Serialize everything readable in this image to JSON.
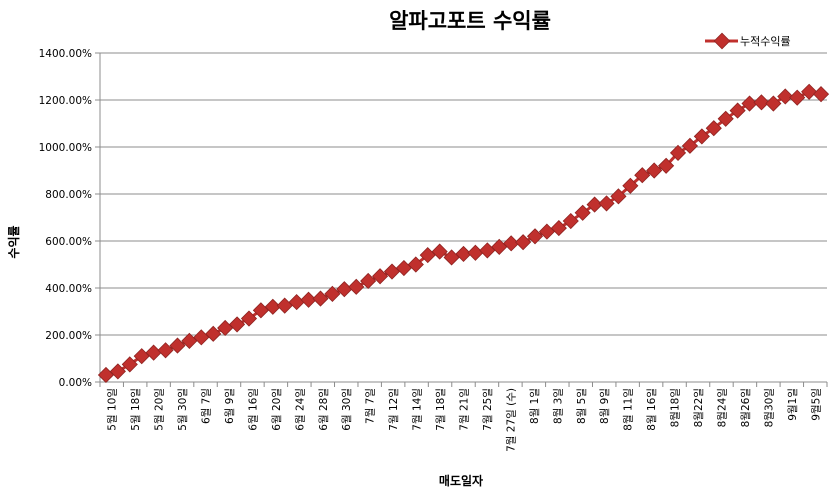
{
  "chart_data": {
    "type": "line",
    "title": "알파고포트 수익률",
    "xlabel": "매도일자",
    "ylabel": "수익률",
    "ylim": [
      0,
      1400
    ],
    "yticks": [
      "0.00%",
      "200.00%",
      "400.00%",
      "600.00%",
      "800.00%",
      "1000.00%",
      "1200.00%",
      "1400.00%"
    ],
    "grid": true,
    "legend_position": "top-right",
    "x_tick_labels": [
      "5월 10일",
      "5월 18일",
      "5월 20일",
      "5월 30일",
      "6월 7일",
      "6월 9일",
      "6월 16일",
      "6월 20일",
      "6월 24일",
      "6월 28일",
      "6월 30일",
      "7월 7일",
      "7월 12일",
      "7월 14일",
      "7월 18일",
      "7월 21일",
      "7월 25일",
      "7월 27일 (수)",
      "8월 1일",
      "8월 3일",
      "8월 5일",
      "8월 9일",
      "8월 11일",
      "8월 16일",
      "8월18일",
      "8월22일",
      "8월24일",
      "8월26일",
      "8월30일",
      "9월1일",
      "9월5일"
    ],
    "series": [
      {
        "name": "누적수익률",
        "color": "#c0302d",
        "values": [
          30,
          45,
          75,
          110,
          125,
          135,
          155,
          175,
          190,
          205,
          230,
          245,
          270,
          305,
          320,
          325,
          340,
          350,
          355,
          375,
          395,
          405,
          430,
          450,
          470,
          485,
          500,
          540,
          555,
          530,
          545,
          550,
          560,
          575,
          590,
          595,
          620,
          640,
          655,
          685,
          720,
          755,
          760,
          790,
          835,
          880,
          900,
          920,
          975,
          1005,
          1045,
          1080,
          1120,
          1155,
          1185,
          1190,
          1185,
          1215,
          1210,
          1235,
          1225
        ]
      }
    ]
  }
}
